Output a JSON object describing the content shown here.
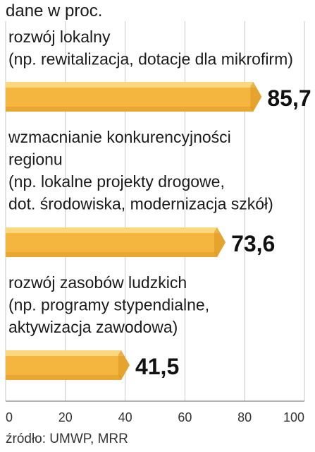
{
  "chart_data": {
    "type": "bar",
    "orientation": "horizontal",
    "unit_label": "dane w proc.",
    "categories": [
      {
        "label_lines": [
          "rozwój lokalny",
          "(np. rewitalizacja, dotacje dla mikrofirm)"
        ],
        "value": 85.7,
        "value_label": "85,7"
      },
      {
        "label_lines": [
          "wzmacnianie konkurencyjności",
          "regionu",
          "(np. lokalne projekty drogowe,",
          "dot. środowiska, modernizacja szkół)"
        ],
        "value": 73.6,
        "value_label": "73,6"
      },
      {
        "label_lines": [
          "rozwój zasobów ludzkich",
          "(np. programy stypendialne,",
          "aktywizacja zawodowa)"
        ],
        "value": 41.5,
        "value_label": "41,5"
      }
    ],
    "xlim": [
      0,
      100
    ],
    "xticks": [
      0,
      20,
      40,
      60,
      80,
      100
    ],
    "grid": true,
    "bar_color": "#f4b63f",
    "bar_highlight": "#fbd77e",
    "bar_shadow": "#d8951f"
  },
  "source": "źródło: UMWP, MRR"
}
